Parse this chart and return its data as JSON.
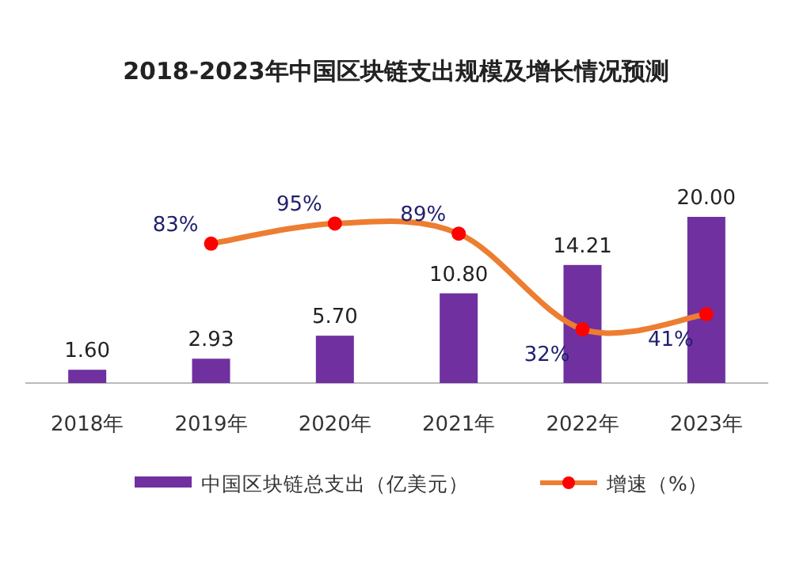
{
  "chart_data": {
    "type": "bar",
    "title": "2018-2023年中国区块链支出规模及增长情况预测",
    "categories": [
      "2018年",
      "2019年",
      "2020年",
      "2021年",
      "2022年",
      "2023年"
    ],
    "series": [
      {
        "name": "中国区块链总支出（亿美元）",
        "color": "#7030a0",
        "values": [
          1.6,
          2.93,
          5.7,
          10.8,
          14.21,
          20.0
        ],
        "value_labels": [
          "1.60",
          "2.93",
          "5.70",
          "10.80",
          "14.21",
          "20.00"
        ]
      },
      {
        "name": "增速（%）",
        "type": "line",
        "axis": "y2",
        "color": "#ed7d31",
        "values": [
          null,
          83,
          95,
          89,
          32,
          41
        ],
        "value_labels": [
          null,
          "83%",
          "95%",
          "89%",
          "32%",
          "41%"
        ]
      }
    ],
    "marker": "circle",
    "legend": "bottom"
  }
}
